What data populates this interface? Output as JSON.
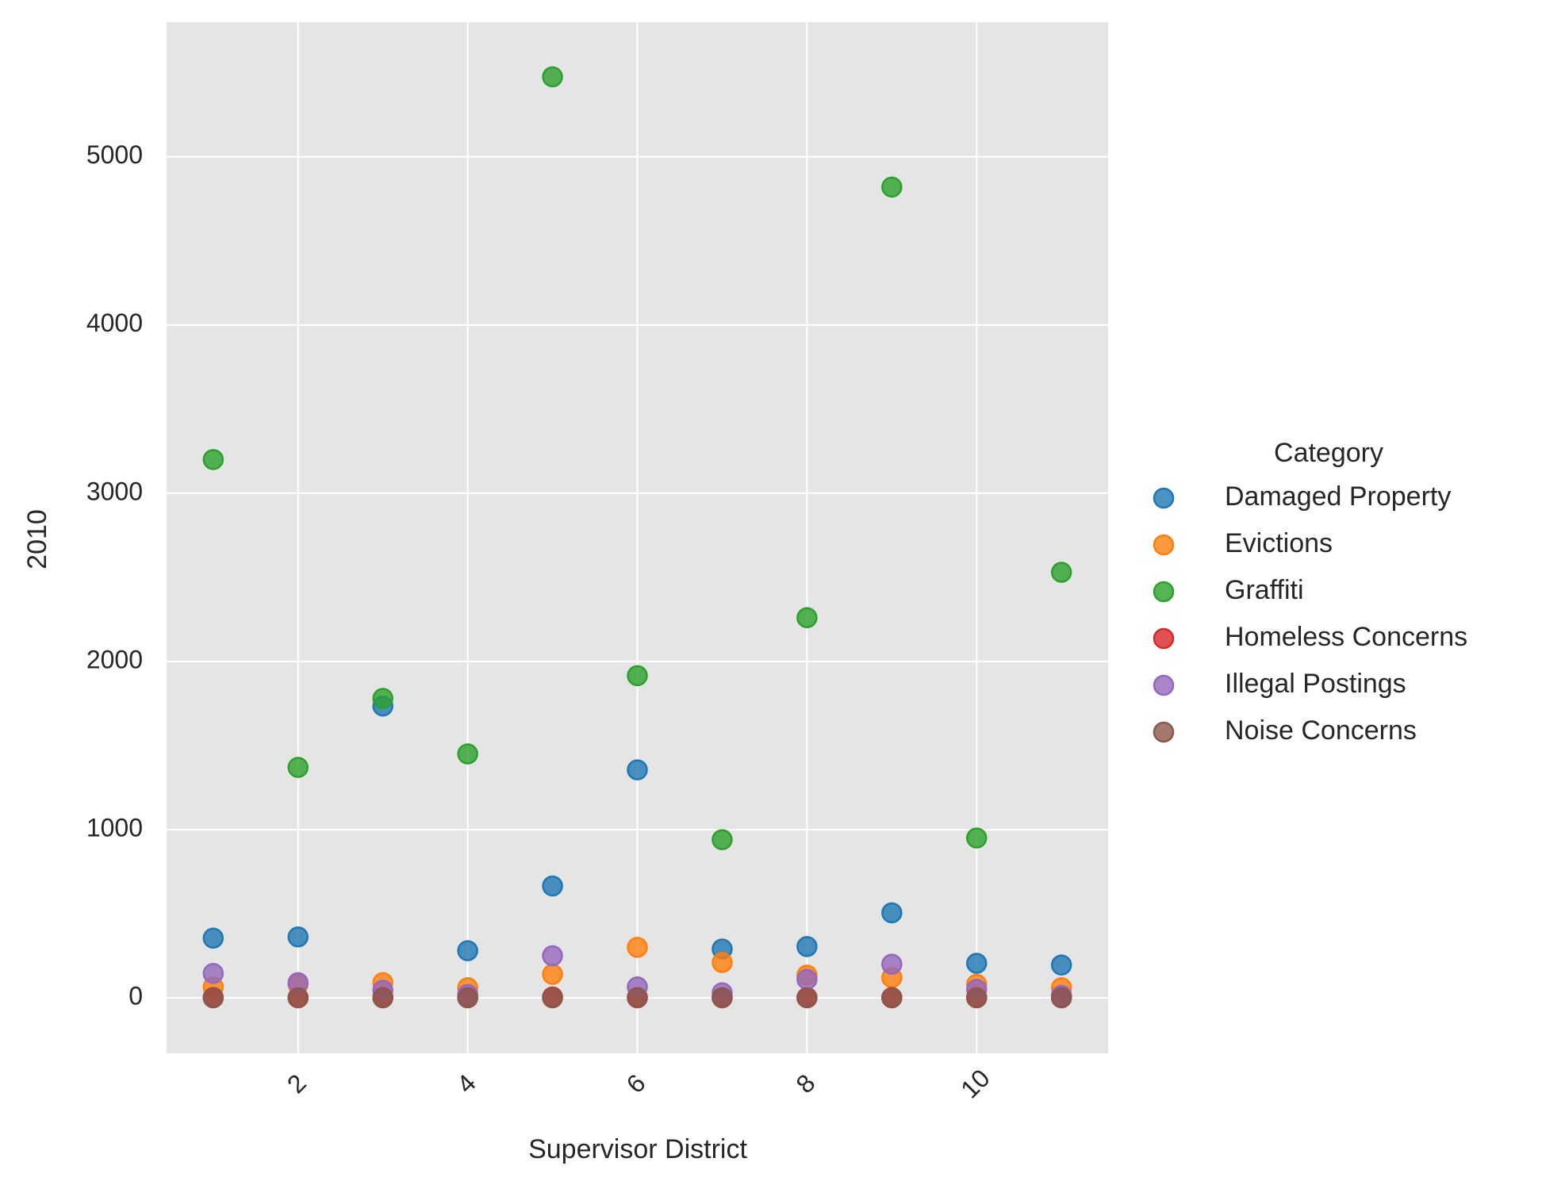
{
  "chart_data": {
    "type": "scatter",
    "xlabel": "Supervisor District",
    "ylabel": "2010",
    "xlim": [
      0.45,
      11.55
    ],
    "ylim": [
      -330,
      5800
    ],
    "x_ticks": [
      2,
      4,
      6,
      8,
      10
    ],
    "y_ticks": [
      0,
      1000,
      2000,
      3000,
      4000,
      5000
    ],
    "x_tick_rotation": -45,
    "grid": true,
    "legend": {
      "title": "Category",
      "placement": "right"
    },
    "series": [
      {
        "name": "Damaged Property",
        "color": "#1f77b4",
        "x": [
          1,
          2,
          3,
          4,
          5,
          6,
          7,
          8,
          9,
          10,
          11
        ],
        "y": [
          355,
          362,
          1735,
          280,
          665,
          1355,
          290,
          305,
          505,
          205,
          195
        ]
      },
      {
        "name": "Evictions",
        "color": "#ff7f0e",
        "x": [
          1,
          2,
          3,
          4,
          5,
          6,
          7,
          8,
          9,
          10,
          11
        ],
        "y": [
          65,
          80,
          90,
          60,
          140,
          300,
          210,
          135,
          120,
          80,
          60
        ]
      },
      {
        "name": "Graffiti",
        "color": "#2ca02c",
        "x": [
          1,
          2,
          3,
          4,
          5,
          6,
          7,
          8,
          9,
          10,
          11
        ],
        "y": [
          3200,
          1370,
          1780,
          1450,
          5475,
          1915,
          940,
          2260,
          4820,
          950,
          2530
        ]
      },
      {
        "name": "Homeless Concerns",
        "color": "#d62728",
        "x": [
          1,
          2,
          3,
          4,
          5,
          6,
          7,
          8,
          9,
          10,
          11
        ],
        "y": [
          2,
          1,
          3,
          2,
          5,
          3,
          2,
          2,
          2,
          1,
          1
        ]
      },
      {
        "name": "Illegal Postings",
        "color": "#9467bd",
        "x": [
          1,
          2,
          3,
          4,
          5,
          6,
          7,
          8,
          9,
          10,
          11
        ],
        "y": [
          145,
          90,
          45,
          20,
          250,
          65,
          30,
          110,
          200,
          50,
          15
        ]
      },
      {
        "name": "Noise Concerns",
        "color": "#8c564b",
        "x": [
          1,
          2,
          3,
          4,
          5,
          6,
          7,
          8,
          9,
          10,
          11
        ],
        "y": [
          0,
          0,
          0,
          0,
          0,
          0,
          0,
          0,
          0,
          0,
          0
        ]
      }
    ]
  }
}
